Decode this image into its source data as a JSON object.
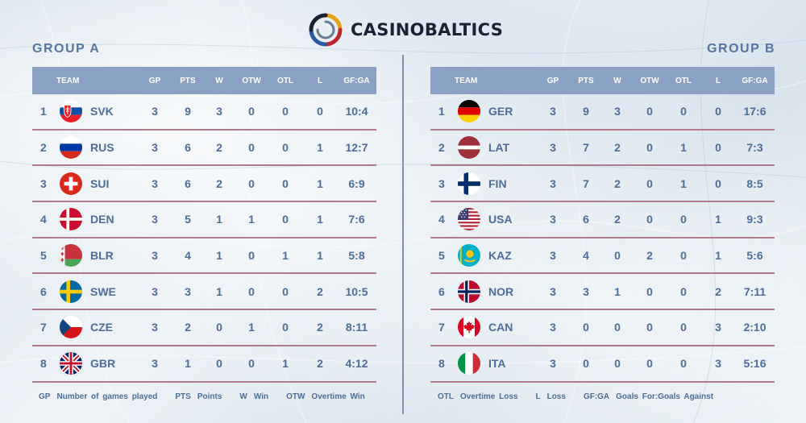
{
  "brand": {
    "name": "CASINOBALTICS",
    "logo_icon": "casinobaltics-swirl-logo"
  },
  "columns": {
    "team": "TEAM",
    "gp": "GP",
    "pts": "PTS",
    "w": "W",
    "otw": "OTW",
    "otl": "OTL",
    "l": "L",
    "gfga": "GF:GA"
  },
  "group_a": {
    "title": "GROUP A",
    "rows": [
      {
        "rank": "1",
        "team": "SVK",
        "flag": "slovakia-flag",
        "gp": "3",
        "pts": "9",
        "w": "3",
        "otw": "0",
        "otl": "0",
        "l": "0",
        "gfga": "10:4"
      },
      {
        "rank": "2",
        "team": "RUS",
        "flag": "russia-flag",
        "gp": "3",
        "pts": "6",
        "w": "2",
        "otw": "0",
        "otl": "0",
        "l": "1",
        "gfga": "12:7"
      },
      {
        "rank": "3",
        "team": "SUI",
        "flag": "switzerland-flag",
        "gp": "3",
        "pts": "6",
        "w": "2",
        "otw": "0",
        "otl": "0",
        "l": "1",
        "gfga": "6:9"
      },
      {
        "rank": "4",
        "team": "DEN",
        "flag": "denmark-flag",
        "gp": "3",
        "pts": "5",
        "w": "1",
        "otw": "1",
        "otl": "0",
        "l": "1",
        "gfga": "7:6"
      },
      {
        "rank": "5",
        "team": "BLR",
        "flag": "belarus-flag",
        "gp": "3",
        "pts": "4",
        "w": "1",
        "otw": "0",
        "otl": "1",
        "l": "1",
        "gfga": "5:8"
      },
      {
        "rank": "6",
        "team": "SWE",
        "flag": "sweden-flag",
        "gp": "3",
        "pts": "3",
        "w": "1",
        "otw": "0",
        "otl": "0",
        "l": "2",
        "gfga": "10:5"
      },
      {
        "rank": "7",
        "team": "CZE",
        "flag": "czech-flag",
        "gp": "3",
        "pts": "2",
        "w": "0",
        "otw": "1",
        "otl": "0",
        "l": "2",
        "gfga": "8:11"
      },
      {
        "rank": "8",
        "team": "GBR",
        "flag": "uk-flag",
        "gp": "3",
        "pts": "1",
        "w": "0",
        "otw": "0",
        "otl": "1",
        "l": "2",
        "gfga": "4:12"
      }
    ]
  },
  "group_b": {
    "title": "GROUP B",
    "rows": [
      {
        "rank": "1",
        "team": "GER",
        "flag": "germany-flag",
        "gp": "3",
        "pts": "9",
        "w": "3",
        "otw": "0",
        "otl": "0",
        "l": "0",
        "gfga": "17:6"
      },
      {
        "rank": "2",
        "team": "LAT",
        "flag": "latvia-flag",
        "gp": "3",
        "pts": "7",
        "w": "2",
        "otw": "0",
        "otl": "1",
        "l": "0",
        "gfga": "7:3"
      },
      {
        "rank": "3",
        "team": "FIN",
        "flag": "finland-flag",
        "gp": "3",
        "pts": "7",
        "w": "2",
        "otw": "0",
        "otl": "1",
        "l": "0",
        "gfga": "8:5"
      },
      {
        "rank": "4",
        "team": "USA",
        "flag": "usa-flag",
        "gp": "3",
        "pts": "6",
        "w": "2",
        "otw": "0",
        "otl": "0",
        "l": "1",
        "gfga": "9:3"
      },
      {
        "rank": "5",
        "team": "KAZ",
        "flag": "kazakhstan-flag",
        "gp": "3",
        "pts": "4",
        "w": "0",
        "otw": "2",
        "otl": "0",
        "l": "1",
        "gfga": "5:6"
      },
      {
        "rank": "6",
        "team": "NOR",
        "flag": "norway-flag",
        "gp": "3",
        "pts": "3",
        "w": "1",
        "otw": "0",
        "otl": "0",
        "l": "2",
        "gfga": "7:11"
      },
      {
        "rank": "7",
        "team": "CAN",
        "flag": "canada-flag",
        "gp": "3",
        "pts": "0",
        "w": "0",
        "otw": "0",
        "otl": "0",
        "l": "3",
        "gfga": "2:10"
      },
      {
        "rank": "8",
        "team": "ITA",
        "flag": "italy-flag",
        "gp": "3",
        "pts": "0",
        "w": "0",
        "otw": "0",
        "otl": "0",
        "l": "3",
        "gfga": "5:16"
      }
    ]
  },
  "legend": {
    "left": [
      {
        "abbr": "GP",
        "text": "Number of games played"
      },
      {
        "abbr": "PTS",
        "text": "Points"
      },
      {
        "abbr": "W",
        "text": "Win"
      },
      {
        "abbr": "OTW",
        "text": "Overtime Win"
      }
    ],
    "right": [
      {
        "abbr": "OTL",
        "text": "Overtime Loss"
      },
      {
        "abbr": "L",
        "text": "Loss"
      },
      {
        "abbr": "GF:GA",
        "text": "Goals For:Goals Against"
      }
    ]
  }
}
